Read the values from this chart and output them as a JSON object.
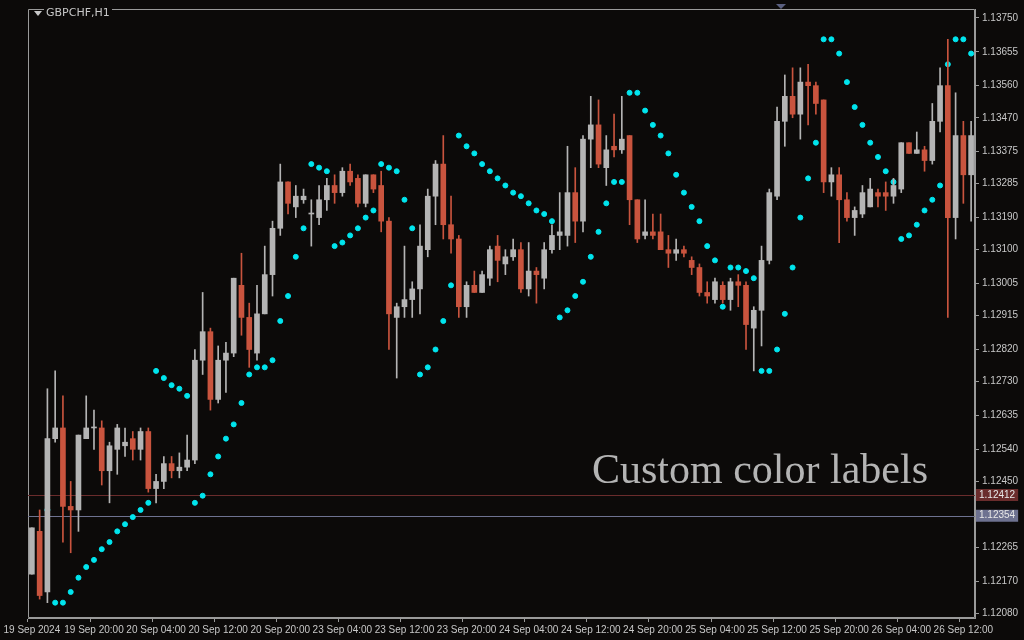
{
  "chart_data": {
    "type": "candlestick",
    "title": "GBPCHF,H1",
    "categories": [
      "19 Sep 2024",
      null,
      null,
      null,
      null,
      null,
      null,
      null,
      "19 Sep 20:00",
      null,
      null,
      null,
      null,
      null,
      null,
      null,
      "20 Sep 04:00",
      null,
      null,
      null,
      null,
      null,
      null,
      null,
      "20 Sep 12:00",
      null,
      null,
      null,
      null,
      null,
      null,
      null,
      "20 Sep 20:00",
      null,
      null,
      null,
      null,
      null,
      null,
      null,
      "23 Sep 04:00",
      null,
      null,
      null,
      null,
      null,
      null,
      null,
      "23 Sep 12:00",
      null,
      null,
      null,
      null,
      null,
      null,
      null,
      "23 Sep 20:00",
      null,
      null,
      null,
      null,
      null,
      null,
      null,
      "24 Sep 04:00",
      null,
      null,
      null,
      null,
      null,
      null,
      null,
      "24 Sep 12:00",
      null,
      null,
      null,
      null,
      null,
      null,
      null,
      "24 Sep 20:00",
      null,
      null,
      null,
      null,
      null,
      null,
      null,
      "25 Sep 04:00",
      null,
      null,
      null,
      null,
      null,
      null,
      null,
      "25 Sep 12:00",
      null,
      null,
      null,
      null,
      null,
      null,
      null,
      "25 Sep 20:00",
      null,
      null,
      null,
      null,
      null,
      null,
      null,
      "26 Sep 04:00",
      null,
      null,
      null,
      null,
      null,
      null,
      null,
      "26 Sep 12:00",
      null
    ],
    "ohlc": [
      [
        1.1219,
        1.1232,
        1.1219,
        1.1232
      ],
      [
        1.1231,
        1.1237,
        1.1212,
        1.1213
      ],
      [
        1.1214,
        1.1271,
        1.1211,
        1.1257
      ],
      [
        1.1257,
        1.1276,
        1.1256,
        1.126
      ],
      [
        1.126,
        1.1269,
        1.1228,
        1.1238
      ],
      [
        1.1238,
        1.1245,
        1.1225,
        1.1237
      ],
      [
        1.1237,
        1.1258,
        1.1231,
        1.1258
      ],
      [
        1.1257,
        1.1269,
        1.1257,
        1.126
      ],
      [
        1.126,
        1.1265,
        1.1254,
        1.126
      ],
      [
        1.126,
        1.1262,
        1.1244,
        1.1248
      ],
      [
        1.1248,
        1.1256,
        1.1239,
        1.1255
      ],
      [
        1.1254,
        1.1261,
        1.1247,
        1.126
      ],
      [
        1.1255,
        1.126,
        1.1252,
        1.1256
      ],
      [
        1.1257,
        1.1259,
        1.1251,
        1.1254
      ],
      [
        1.1254,
        1.126,
        1.1251,
        1.1259
      ],
      [
        1.1259,
        1.126,
        1.1242,
        1.1243
      ],
      [
        1.1243,
        1.1247,
        1.1239,
        1.1245
      ],
      [
        1.1245,
        1.1252,
        1.1243,
        1.125
      ],
      [
        1.125,
        1.1252,
        1.1246,
        1.1248
      ],
      [
        1.1248,
        1.1253,
        1.1246,
        1.1249
      ],
      [
        1.1249,
        1.1258,
        1.1248,
        1.1251
      ],
      [
        1.1251,
        1.1282,
        1.125,
        1.1279
      ],
      [
        1.1279,
        1.1298,
        1.1275,
        1.1287
      ],
      [
        1.1287,
        1.1288,
        1.1265,
        1.1268
      ],
      [
        1.1268,
        1.1283,
        1.1267,
        1.1279
      ],
      [
        1.1279,
        1.1284,
        1.127,
        1.1281
      ],
      [
        1.1281,
        1.1302,
        1.128,
        1.1302
      ],
      [
        1.13,
        1.1309,
        1.1286,
        1.1291
      ],
      [
        1.1291,
        1.1295,
        1.1277,
        1.1282
      ],
      [
        1.1281,
        1.13,
        1.1279,
        1.1292
      ],
      [
        1.1292,
        1.1311,
        1.1292,
        1.1303
      ],
      [
        1.1303,
        1.1318,
        1.1297,
        1.1316
      ],
      [
        1.1316,
        1.1334,
        1.1314,
        1.1329
      ],
      [
        1.1329,
        1.1329,
        1.132,
        1.1323
      ],
      [
        1.1322,
        1.1328,
        1.1319,
        1.1325
      ],
      [
        1.1324,
        1.1327,
        1.1323,
        1.1325
      ],
      [
        1.132,
        1.1324,
        1.1311,
        1.132
      ],
      [
        1.1319,
        1.1328,
        1.1317,
        1.1324
      ],
      [
        1.1324,
        1.133,
        1.1321,
        1.1328
      ],
      [
        1.1328,
        1.1331,
        1.1323,
        1.1326
      ],
      [
        1.1326,
        1.1333,
        1.1325,
        1.1332
      ],
      [
        1.1332,
        1.1334,
        1.1328,
        1.1329
      ],
      [
        1.133,
        1.1331,
        1.1322,
        1.1323
      ],
      [
        1.1323,
        1.1331,
        1.1322,
        1.1331
      ],
      [
        1.1331,
        1.1331,
        1.1326,
        1.1327
      ],
      [
        1.1328,
        1.1332,
        1.1315,
        1.1318
      ],
      [
        1.1318,
        1.1319,
        1.1282,
        1.1292
      ],
      [
        1.1291,
        1.1295,
        1.1274,
        1.1294
      ],
      [
        1.1294,
        1.1311,
        1.1291,
        1.1296
      ],
      [
        1.1296,
        1.1301,
        1.1291,
        1.1299
      ],
      [
        1.1299,
        1.1317,
        1.1292,
        1.1311
      ],
      [
        1.131,
        1.1327,
        1.1308,
        1.1325
      ],
      [
        1.1325,
        1.1335,
        1.1317,
        1.1334
      ],
      [
        1.1334,
        1.1342,
        1.1313,
        1.1317
      ],
      [
        1.1317,
        1.1325,
        1.1309,
        1.1313
      ],
      [
        1.1313,
        1.1314,
        1.1291,
        1.1294
      ],
      [
        1.1294,
        1.1301,
        1.1291,
        1.13
      ],
      [
        1.13,
        1.1304,
        1.1298,
        1.1298
      ],
      [
        1.1298,
        1.1304,
        1.1298,
        1.1303
      ],
      [
        1.1302,
        1.1311,
        1.13,
        1.131
      ],
      [
        1.1311,
        1.1314,
        1.1301,
        1.1307
      ],
      [
        1.1306,
        1.131,
        1.1303,
        1.1308
      ],
      [
        1.1308,
        1.1313,
        1.1307,
        1.131
      ],
      [
        1.131,
        1.1312,
        1.1298,
        1.1299
      ],
      [
        1.1299,
        1.1312,
        1.1297,
        1.1304
      ],
      [
        1.1304,
        1.1305,
        1.1295,
        1.1303
      ],
      [
        1.1302,
        1.1312,
        1.1299,
        1.131
      ],
      [
        1.131,
        1.1317,
        1.1309,
        1.1314
      ],
      [
        1.1314,
        1.1326,
        1.131,
        1.1315
      ],
      [
        1.1314,
        1.1339,
        1.1311,
        1.1326
      ],
      [
        1.1326,
        1.1333,
        1.1312,
        1.1318
      ],
      [
        1.1318,
        1.1342,
        1.1315,
        1.1341
      ],
      [
        1.1341,
        1.1353,
        1.1333,
        1.1345
      ],
      [
        1.1345,
        1.1352,
        1.1333,
        1.1334
      ],
      [
        1.1333,
        1.1342,
        1.1328,
        1.1338
      ],
      [
        1.1339,
        1.1348,
        1.1336,
        1.1338
      ],
      [
        1.1338,
        1.1353,
        1.1337,
        1.1341
      ],
      [
        1.1342,
        1.1342,
        1.1317,
        1.1324
      ],
      [
        1.1324,
        1.1324,
        1.1312,
        1.1313
      ],
      [
        1.1314,
        1.1324,
        1.1313,
        1.1315
      ],
      [
        1.1315,
        1.132,
        1.1313,
        1.1314
      ],
      [
        1.1315,
        1.132,
        1.131,
        1.131
      ],
      [
        1.131,
        1.1314,
        1.1305,
        1.1309
      ],
      [
        1.1309,
        1.1313,
        1.1307,
        1.131
      ],
      [
        1.131,
        1.1311,
        1.1308,
        1.1309
      ],
      [
        1.1307,
        1.1308,
        1.1303,
        1.1305
      ],
      [
        1.1305,
        1.1306,
        1.1297,
        1.1298
      ],
      [
        1.1298,
        1.1301,
        1.1295,
        1.1297
      ],
      [
        1.1296,
        1.1302,
        1.1295,
        1.1301
      ],
      [
        1.13,
        1.1301,
        1.1295,
        1.1296
      ],
      [
        1.1296,
        1.1302,
        1.1293,
        1.1301
      ],
      [
        1.1301,
        1.1303,
        1.1294,
        1.13
      ],
      [
        1.13,
        1.1301,
        1.1282,
        1.1289
      ],
      [
        1.1288,
        1.1294,
        1.1276,
        1.1293
      ],
      [
        1.1293,
        1.1311,
        1.1283,
        1.1307
      ],
      [
        1.1307,
        1.1327,
        1.1306,
        1.1326
      ],
      [
        1.1325,
        1.135,
        1.1324,
        1.1346
      ],
      [
        1.1346,
        1.1359,
        1.1339,
        1.1353
      ],
      [
        1.1353,
        1.1361,
        1.1347,
        1.1348
      ],
      [
        1.1348,
        1.1361,
        1.1341,
        1.1357
      ],
      [
        1.1357,
        1.1362,
        1.1345,
        1.1356
      ],
      [
        1.1356,
        1.1357,
        1.1348,
        1.1351
      ],
      [
        1.1352,
        1.1352,
        1.1326,
        1.1329
      ],
      [
        1.1329,
        1.1333,
        1.1325,
        1.1331
      ],
      [
        1.1331,
        1.1333,
        1.1312,
        1.1324
      ],
      [
        1.1324,
        1.1326,
        1.1318,
        1.1319
      ],
      [
        1.1319,
        1.1322,
        1.1314,
        1.1321
      ],
      [
        1.132,
        1.1328,
        1.1319,
        1.1326
      ],
      [
        1.1322,
        1.133,
        1.1322,
        1.1327
      ],
      [
        1.1326,
        1.1327,
        1.1322,
        1.1325
      ],
      [
        1.1326,
        1.1329,
        1.1321,
        1.1325
      ],
      [
        1.1325,
        1.133,
        1.1323,
        1.1328
      ],
      [
        1.1327,
        1.134,
        1.1326,
        1.134
      ],
      [
        1.134,
        1.134,
        1.1337,
        1.1337
      ],
      [
        1.1337,
        1.1343,
        1.1337,
        1.1338
      ],
      [
        1.1338,
        1.1339,
        1.1332,
        1.1335
      ],
      [
        1.1335,
        1.1351,
        1.1334,
        1.1346
      ],
      [
        1.1346,
        1.1361,
        1.1343,
        1.1356
      ],
      [
        1.1356,
        1.1369,
        1.1291,
        1.1319
      ],
      [
        1.1319,
        1.1354,
        1.1313,
        1.1342
      ],
      [
        1.1342,
        1.1346,
        1.1323,
        1.1331
      ],
      [
        1.1331,
        1.1346,
        1.1318,
        1.1342
      ]
    ],
    "colors": [
      "#b4b4b4",
      "#c9543e",
      "#b4b4b4",
      "#b4b4b4",
      "#c9543e",
      "#c9543e",
      "#b4b4b4",
      "#b4b4b4",
      "#b4b4b4",
      "#c9543e",
      "#b4b4b4",
      "#b4b4b4",
      "#b4b4b4",
      "#c9543e",
      "#b4b4b4",
      "#c9543e",
      "#b4b4b4",
      "#b4b4b4",
      "#c9543e",
      "#b4b4b4",
      "#b4b4b4",
      "#b4b4b4",
      "#b4b4b4",
      "#c9543e",
      "#b4b4b4",
      "#b4b4b4",
      "#b4b4b4",
      "#c9543e",
      "#c9543e",
      "#b4b4b4",
      "#b4b4b4",
      "#b4b4b4",
      "#b4b4b4",
      "#c9543e",
      "#b4b4b4",
      "#b4b4b4",
      "#b4b4b4",
      "#b4b4b4",
      "#b4b4b4",
      "#c9543e",
      "#b4b4b4",
      "#c9543e",
      "#c9543e",
      "#b4b4b4",
      "#c9543e",
      "#c9543e",
      "#c9543e",
      "#b4b4b4",
      "#b4b4b4",
      "#b4b4b4",
      "#b4b4b4",
      "#b4b4b4",
      "#b4b4b4",
      "#c9543e",
      "#c9543e",
      "#c9543e",
      "#b4b4b4",
      "#c9543e",
      "#b4b4b4",
      "#b4b4b4",
      "#c9543e",
      "#b4b4b4",
      "#b4b4b4",
      "#c9543e",
      "#b4b4b4",
      "#c9543e",
      "#b4b4b4",
      "#b4b4b4",
      "#b4b4b4",
      "#b4b4b4",
      "#c9543e",
      "#b4b4b4",
      "#b4b4b4",
      "#c9543e",
      "#b4b4b4",
      "#c9543e",
      "#b4b4b4",
      "#c9543e",
      "#c9543e",
      "#b4b4b4",
      "#c9543e",
      "#c9543e",
      "#c9543e",
      "#b4b4b4",
      "#c9543e",
      "#c9543e",
      "#c9543e",
      "#c9543e",
      "#b4b4b4",
      "#c9543e",
      "#b4b4b4",
      "#c9543e",
      "#c9543e",
      "#b4b4b4",
      "#b4b4b4",
      "#b4b4b4",
      "#b4b4b4",
      "#b4b4b4",
      "#c9543e",
      "#b4b4b4",
      "#c9543e",
      "#c9543e",
      "#c9543e",
      "#b4b4b4",
      "#c9543e",
      "#c9543e",
      "#b4b4b4",
      "#b4b4b4",
      "#b4b4b4",
      "#c9543e",
      "#c9543e",
      "#b4b4b4",
      "#b4b4b4",
      "#c9543e",
      "#b4b4b4",
      "#c9543e",
      "#b4b4b4",
      "#b4b4b4",
      "#c9543e",
      "#b4b4b4",
      "#c9543e",
      "#b4b4b4"
    ],
    "series": [
      {
        "type": "scatter",
        "color": "#00e5ee",
        "marker": "circle",
        "values": [
          null,
          null,
          1.1237,
          1.1211,
          1.1211,
          1.1214,
          1.1218,
          1.1221,
          1.1223,
          1.1226,
          1.1228,
          1.1231,
          1.1233,
          1.1235,
          1.1237,
          1.1239,
          1.1276,
          1.1274,
          1.1272,
          1.1271,
          1.1269,
          1.1239,
          1.1241,
          1.1247,
          1.1252,
          1.1257,
          1.1261,
          1.1267,
          1.1275,
          1.1277,
          1.1277,
          1.1279,
          1.129,
          1.1297,
          1.1308,
          1.1316,
          1.1334,
          1.1333,
          1.1332,
          1.1311,
          1.1312,
          1.1314,
          1.1316,
          1.1319,
          1.1321,
          1.1334,
          1.1333,
          1.1332,
          1.1324,
          1.1316,
          1.1275,
          1.1277,
          1.1282,
          1.129,
          1.13,
          1.1342,
          1.1339,
          1.1337,
          1.1334,
          1.1332,
          1.133,
          1.1328,
          1.1326,
          1.1325,
          1.1323,
          1.1321,
          1.132,
          1.1318,
          1.1291,
          1.1293,
          1.1297,
          1.1301,
          1.1308,
          1.1315,
          1.1323,
          1.1329,
          1.1329,
          1.1354,
          1.1354,
          1.1349,
          1.1345,
          1.1342,
          1.1337,
          1.1331,
          1.1326,
          1.1322,
          1.1318,
          1.1311,
          1.1307,
          1.1294,
          1.1305,
          1.1305,
          1.1304,
          1.1302,
          1.1276,
          1.1276,
          1.1282,
          1.1292,
          1.1305,
          1.1319,
          1.133,
          1.134,
          1.1369,
          1.1369,
          1.1365,
          1.1357,
          1.135,
          1.1345,
          1.134,
          1.1336,
          1.1332,
          1.1329,
          1.1313,
          1.1314,
          1.1317,
          1.1321,
          1.1324,
          1.1328,
          1.1362,
          1.1369,
          1.1369,
          1.1365
        ]
      }
    ],
    "ylim": [
      1.12067,
      1.13775
    ],
    "yticks": [
      {
        "value": 1.1375,
        "label": "1.13750"
      },
      1.13655,
      {
        "value": 1.1356,
        "label": "1.13560"
      },
      {
        "value": 1.1347,
        "label": "1.13470"
      },
      1.13375,
      1.13285,
      {
        "value": 1.1319,
        "label": "1.13190"
      },
      {
        "value": 1.131,
        "label": "1.13100"
      },
      1.13005,
      1.12915,
      {
        "value": 1.1282,
        "label": "1.12820"
      },
      {
        "value": 1.1273,
        "label": "1.12730"
      },
      1.12635,
      {
        "value": 1.1254,
        "label": "1.12540"
      },
      {
        "value": 1.1245,
        "label": "1.12450"
      },
      1.12265,
      {
        "value": 1.1217,
        "label": "1.12170"
      },
      {
        "value": 1.1208,
        "label": "1.12080"
      }
    ],
    "ref_lines": [
      {
        "axis": "y",
        "value": 1.12412,
        "label": "1.12412",
        "color": "#6a2c2c"
      },
      {
        "axis": "y",
        "value": 1.12354,
        "label": "1.12354",
        "color": "#6e7290"
      }
    ],
    "annotations": [
      "Custom color labels"
    ]
  }
}
